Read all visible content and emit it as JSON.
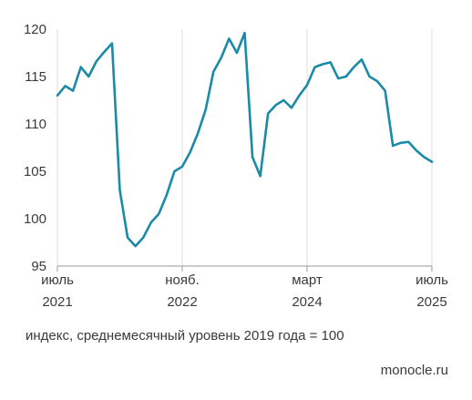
{
  "chart_data": {
    "type": "line",
    "title": "",
    "xlabel": "",
    "ylabel": "",
    "ylim": [
      95,
      120
    ],
    "yticks": [
      95,
      100,
      105,
      110,
      115,
      120
    ],
    "grid": "vertical",
    "line_color": "#1a8aa6",
    "xlim": [
      "2021-07",
      "2025-07"
    ],
    "xticks": [
      {
        "x": "2021-07",
        "line1": "июль",
        "line2": "2021"
      },
      {
        "x": "2022-11",
        "line1": "нояб.",
        "line2": "2022"
      },
      {
        "x": "2024-03",
        "line1": "март",
        "line2": "2024"
      },
      {
        "x": "2025-07",
        "line1": "июль",
        "line2": "2025"
      }
    ],
    "series": [
      {
        "x": [
          "2021-07",
          "2021-08",
          "2021-09",
          "2021-10",
          "2021-11",
          "2021-12",
          "2022-01",
          "2022-02",
          "2022-03",
          "2022-04",
          "2022-05",
          "2022-06",
          "2022-07",
          "2022-08",
          "2022-09",
          "2022-10",
          "2022-11",
          "2022-12",
          "2023-01",
          "2023-02",
          "2023-03",
          "2023-04",
          "2023-05",
          "2023-06",
          "2023-07",
          "2023-08",
          "2023-09",
          "2023-10",
          "2023-11",
          "2023-12",
          "2024-01",
          "2024-02",
          "2024-03",
          "2024-04",
          "2024-05",
          "2024-06",
          "2024-07",
          "2024-08",
          "2024-09",
          "2024-10",
          "2024-11",
          "2024-12",
          "2025-01",
          "2025-02",
          "2025-03",
          "2025-04",
          "2025-05",
          "2025-06",
          "2025-07"
        ],
        "values": [
          113.0,
          114.0,
          113.5,
          116.0,
          115.0,
          116.6,
          117.6,
          118.5,
          103.0,
          98.0,
          97.1,
          98.0,
          99.6,
          100.5,
          102.5,
          105.0,
          105.5,
          107.0,
          109.0,
          111.5,
          115.5,
          117.0,
          119.0,
          117.5,
          119.6,
          106.5,
          104.5,
          111.1,
          112.0,
          112.5,
          111.7,
          113.0,
          114.1,
          116.0,
          116.3,
          116.5,
          114.8,
          115.0,
          116.0,
          116.8,
          115.0,
          114.5,
          113.5,
          107.7,
          108.0,
          108.1,
          107.2,
          106.5,
          106.0
        ]
      }
    ]
  },
  "caption": "индекс, среднемесячный уровень 2019 года = 100",
  "source": "monocle.ru"
}
